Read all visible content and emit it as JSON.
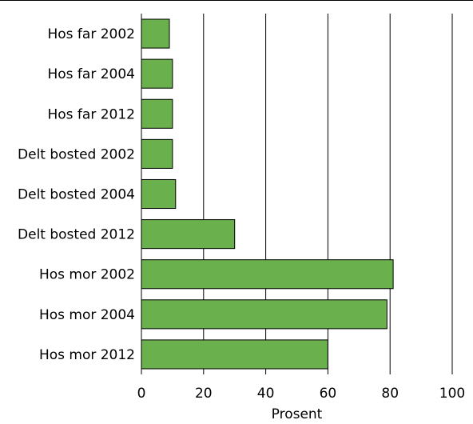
{
  "chart_data": {
    "type": "bar",
    "orientation": "horizontal",
    "categories": [
      "Hos far 2002",
      "Hos far 2004",
      "Hos far 2012",
      "Delt bosted 2002",
      "Delt bosted 2004",
      "Delt bosted 2012",
      "Hos mor 2002",
      "Hos mor 2004",
      "Hos mor 2012"
    ],
    "values": [
      9,
      10,
      10,
      10,
      11,
      30,
      81,
      79,
      60
    ],
    "xlabel": "Prosent",
    "ylabel": "",
    "xlim": [
      0,
      100
    ],
    "xticks": [
      "0",
      "20",
      "40",
      "60",
      "80",
      "100"
    ],
    "grid": "vertical",
    "bar_color": "#6ab04c",
    "bar_edge_color": "#000000"
  }
}
